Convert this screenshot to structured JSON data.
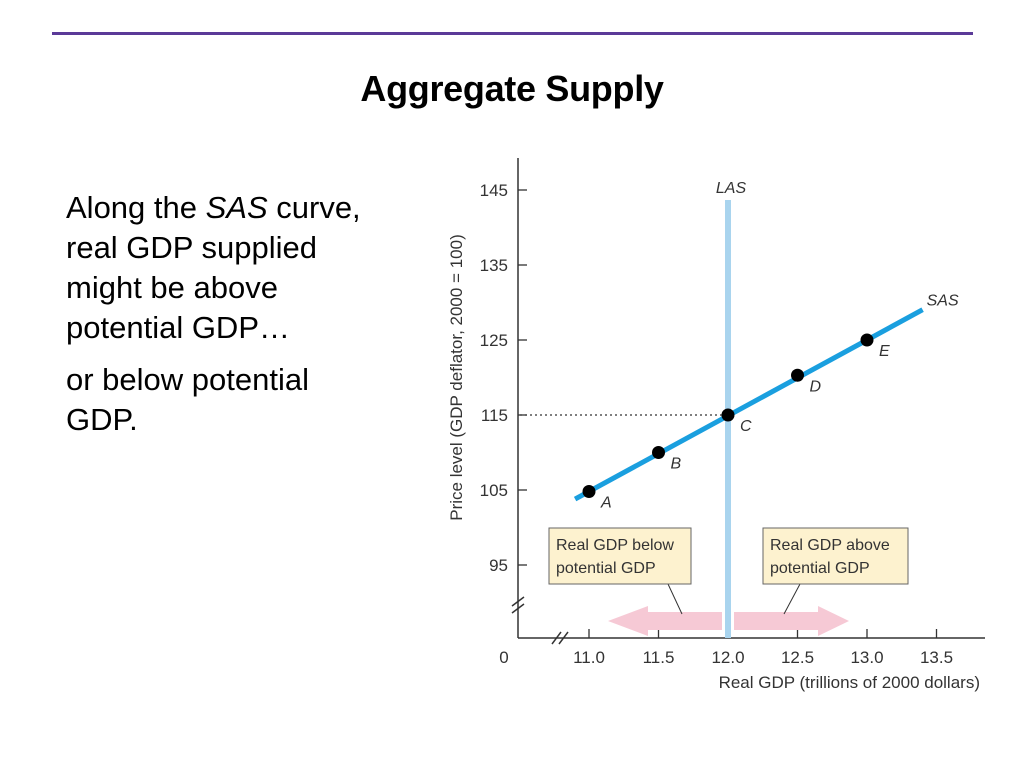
{
  "slide": {
    "title": "Aggregate Supply",
    "paragraph1": {
      "before": "Along the ",
      "emphasis": "SAS",
      "after": " curve, real GDP supplied might be above potential GDP…"
    },
    "paragraph2": "or below potential GDP."
  },
  "chart_data": {
    "type": "line",
    "title": "",
    "xlabel": "Real GDP (trillions of 2000 dollars)",
    "ylabel": "Price level (GDP deflator, 2000 = 100)",
    "origin_label": "0",
    "xlim": [
      11.0,
      13.5
    ],
    "ylim": [
      95,
      145
    ],
    "x_ticks": [
      "11.0",
      "11.5",
      "12.0",
      "12.5",
      "13.0",
      "13.5"
    ],
    "y_ticks": [
      "95",
      "105",
      "115",
      "125",
      "135",
      "145"
    ],
    "axis_breaks": true,
    "grid": false,
    "series": [
      {
        "name": "SAS",
        "color": "#1a9fdf",
        "points": [
          {
            "label": "A",
            "x": 11.0,
            "y": 104.8
          },
          {
            "label": "B",
            "x": 11.5,
            "y": 110.0
          },
          {
            "label": "C",
            "x": 12.0,
            "y": 115.0
          },
          {
            "label": "D",
            "x": 12.5,
            "y": 120.3
          },
          {
            "label": "E",
            "x": 13.0,
            "y": 125.0
          }
        ],
        "line_x": [
          10.9,
          13.4
        ]
      }
    ],
    "vertical_line": {
      "name": "LAS",
      "x": 12.0,
      "color": "#a9d4ee"
    },
    "reference_line": {
      "y": 115,
      "style": "dotted"
    },
    "annotations": [
      {
        "text": [
          "Real GDP below",
          "potential GDP"
        ],
        "direction": "left",
        "box_fill": "#fdf2cf",
        "arrow_fill": "#f6c9d5"
      },
      {
        "text": [
          "Real GDP above",
          "potential GDP"
        ],
        "direction": "right",
        "box_fill": "#fdf2cf",
        "arrow_fill": "#f6c9d5"
      }
    ],
    "point_color": "#000000"
  }
}
